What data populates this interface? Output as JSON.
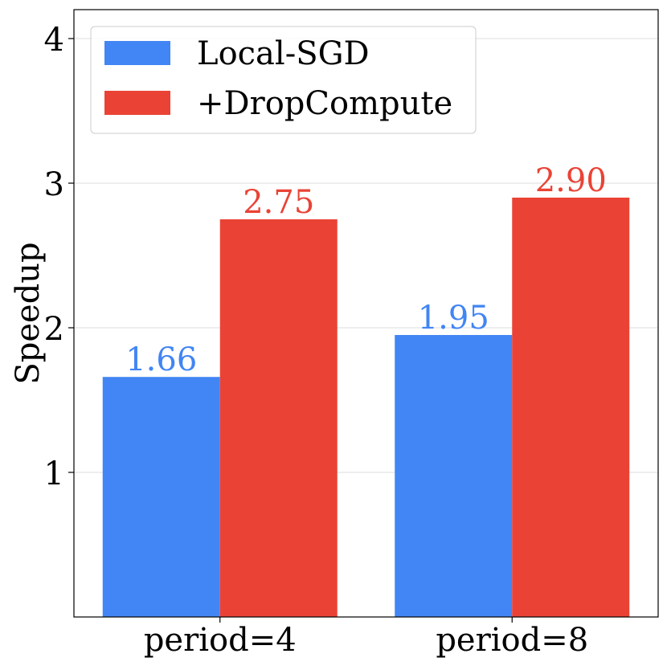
{
  "chart_data": {
    "type": "bar",
    "title": "",
    "xlabel": "",
    "ylabel": "Speedup",
    "categories": [
      "period=4",
      "period=8"
    ],
    "series": [
      {
        "name": "Local-SGD",
        "values": [
          1.66,
          1.95
        ],
        "labels": [
          "1.66",
          "1.95"
        ],
        "color": "#4285F4"
      },
      {
        "name": "+DropCompute",
        "values": [
          2.75,
          2.9
        ],
        "labels": [
          "2.75",
          "2.90"
        ],
        "color": "#EA4335"
      }
    ],
    "yticks": [
      {
        "value": 1,
        "label": "1"
      },
      {
        "value": 2,
        "label": "2"
      },
      {
        "value": 3,
        "label": "3"
      },
      {
        "value": 4,
        "label": "4"
      }
    ],
    "ylim": [
      0,
      4.2
    ],
    "grid": true,
    "legend_position": "top-left"
  }
}
